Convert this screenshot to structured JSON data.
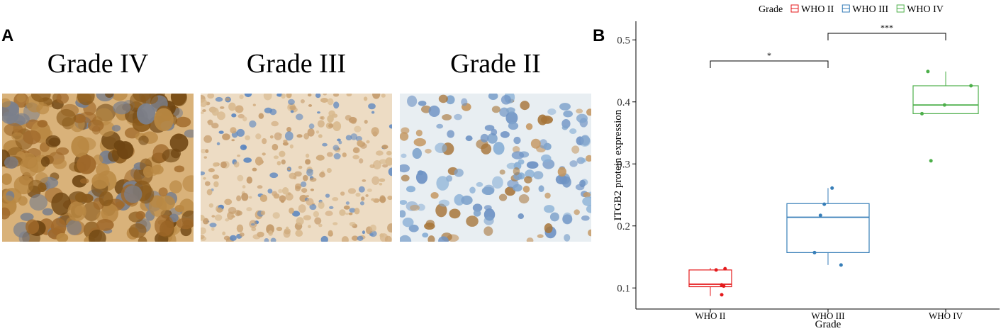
{
  "panels": {
    "a": {
      "label": "A",
      "images": [
        {
          "title": "Grade IV"
        },
        {
          "title": "Grade III"
        },
        {
          "title": "Grade II"
        }
      ]
    },
    "b": {
      "label": "B"
    }
  },
  "chart_data": {
    "type": "box",
    "legend_title": "Grade",
    "legend_position": "top",
    "x_label": "Grade",
    "y_label": "ITGB2 protein expression",
    "categories": [
      "WHO II",
      "WHO III",
      "WHO IV"
    ],
    "ylim": [
      0.066,
      0.53
    ],
    "yticks": [
      0.1,
      0.2,
      0.3,
      0.4,
      0.5
    ],
    "series": [
      {
        "name": "WHO II",
        "color": "#e41a1c",
        "whisker_low": 0.087,
        "q1": 0.102,
        "median": 0.106,
        "q3": 0.129,
        "whisker_high": 0.132,
        "points": [
          0.131,
          0.129,
          0.105,
          0.103,
          0.089
        ]
      },
      {
        "name": "WHO III",
        "color": "#377eb8",
        "whisker_low": 0.137,
        "q1": 0.157,
        "median": 0.214,
        "q3": 0.236,
        "whisker_high": 0.261,
        "points": [
          0.261,
          0.235,
          0.217,
          0.157,
          0.137
        ]
      },
      {
        "name": "WHO IV",
        "color": "#4daf4a",
        "whisker_low": 0.381,
        "q1": 0.381,
        "median": 0.395,
        "q3": 0.426,
        "whisker_high": 0.449,
        "points": [
          0.449,
          0.426,
          0.395,
          0.381,
          0.305
        ]
      }
    ],
    "comparisons": [
      {
        "groups": [
          0,
          1
        ],
        "label": "*"
      },
      {
        "groups": [
          1,
          2
        ],
        "label": "***"
      }
    ]
  }
}
